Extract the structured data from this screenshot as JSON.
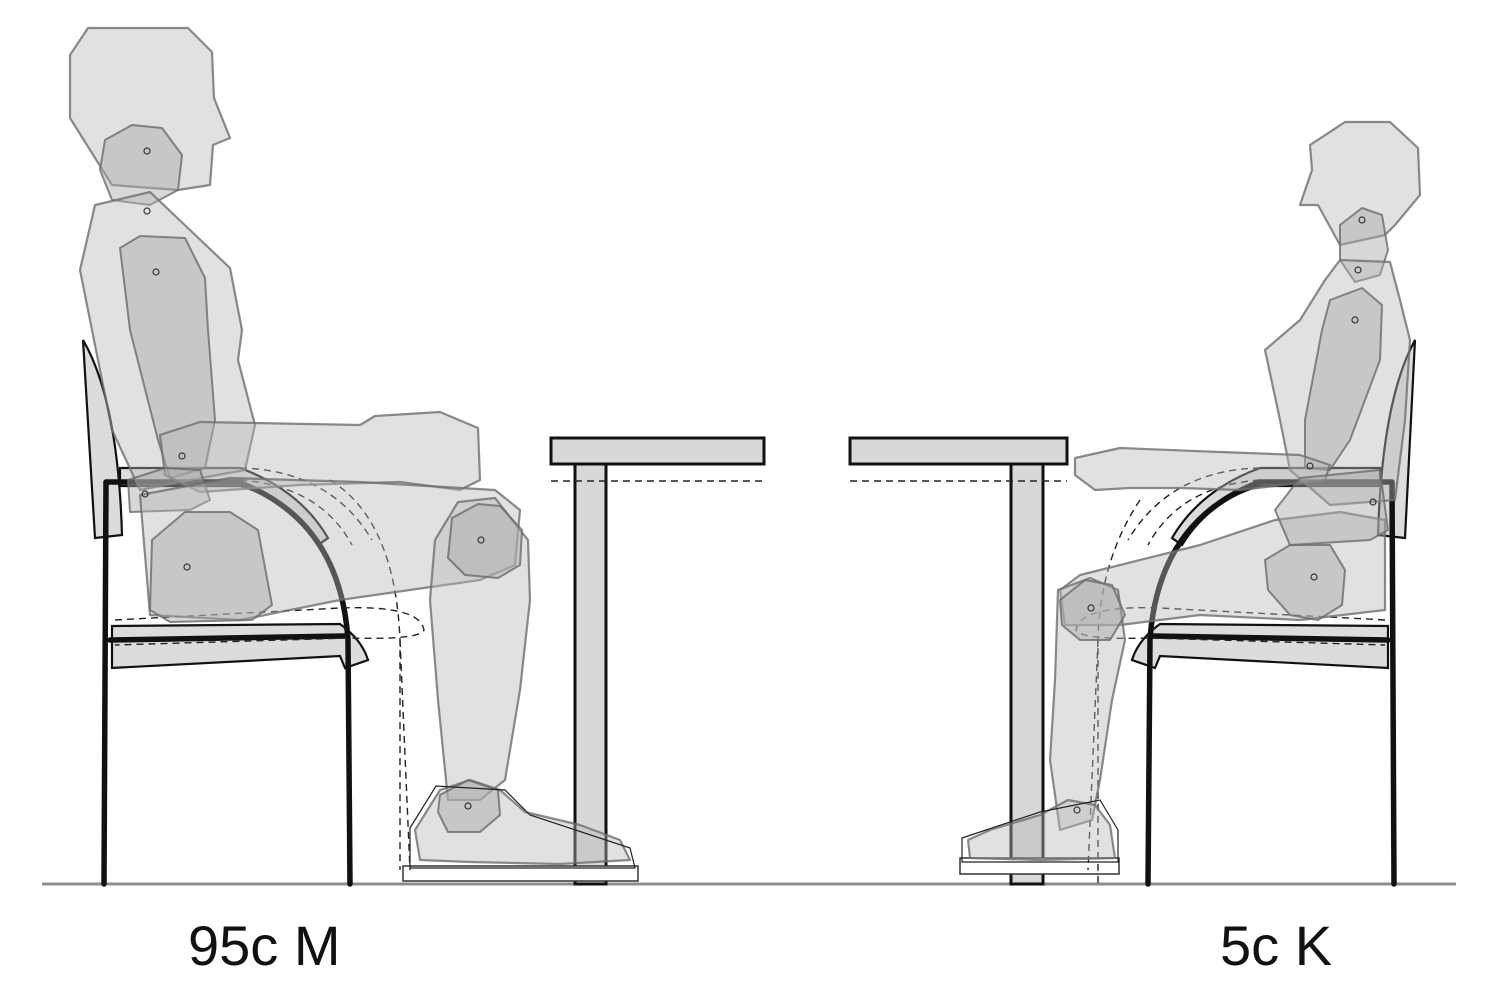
{
  "labels": {
    "left_figure": "95c M",
    "right_figure": "5c K"
  },
  "colors": {
    "background": "#ffffff",
    "body_fill": "#b8b8b8",
    "line": "#111111",
    "floor": "#8c8c8c",
    "table_fill": "#d8d8d8"
  }
}
